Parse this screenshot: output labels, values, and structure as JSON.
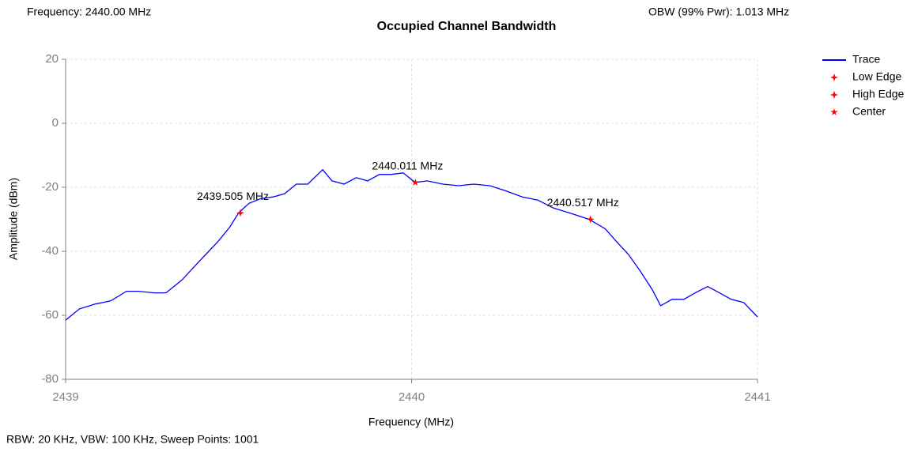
{
  "chart_data": {
    "type": "line",
    "title": "Occupied Channel Bandwidth",
    "header_left": "Frequency: 2440.00 MHz",
    "header_right": "OBW (99% Pwr): 1.013 MHz",
    "footer": "RBW: 20 KHz,  VBW: 100 KHz,  Sweep Points: 1001",
    "xlabel": "Frequency (MHz)",
    "ylabel": "Amplitude (dBm)",
    "xlim": [
      2439,
      2441
    ],
    "xticks": [
      2439,
      2440,
      2441
    ],
    "ylim": [
      -80,
      20
    ],
    "yticks": [
      -80,
      -60,
      -40,
      -20,
      0,
      20
    ],
    "grid": true,
    "legend": "right",
    "series": [
      {
        "name": "Trace",
        "color": "#0000ff",
        "x": [
          2439.0,
          2439.04,
          2439.085,
          2439.13,
          2439.176,
          2439.21,
          2439.256,
          2439.29,
          2439.336,
          2439.37,
          2439.405,
          2439.44,
          2439.474,
          2439.5,
          2439.53,
          2439.565,
          2439.6,
          2439.633,
          2439.667,
          2439.7,
          2439.743,
          2439.77,
          2439.805,
          2439.84,
          2439.873,
          2439.907,
          2439.94,
          2439.976,
          2440.01,
          2440.045,
          2440.09,
          2440.136,
          2440.18,
          2440.226,
          2440.27,
          2440.32,
          2440.365,
          2440.41,
          2440.456,
          2440.513,
          2440.56,
          2440.593,
          2440.627,
          2440.66,
          2440.696,
          2440.72,
          2440.753,
          2440.787,
          2440.82,
          2440.856,
          2440.89,
          2440.924,
          2440.96,
          2441.0
        ],
        "values": [
          -61.5,
          -58,
          -56.5,
          -55.5,
          -52.5,
          -52.5,
          -53,
          -53,
          -49,
          -45,
          -41,
          -37,
          -32.5,
          -28,
          -25,
          -23.5,
          -23,
          -22,
          -19,
          -19,
          -14.5,
          -18,
          -19,
          -17,
          -18,
          -16,
          -16,
          -15.5,
          -18.5,
          -18,
          -19,
          -19.5,
          -19,
          -19.5,
          -21,
          -23,
          -24,
          -26.5,
          -28,
          -30,
          -33,
          -37,
          -41,
          -46,
          -52,
          -57,
          -55,
          -55,
          -53,
          -51,
          -53,
          -55,
          -56,
          -60.5
        ]
      },
      {
        "name": "Low Edge",
        "color": "#ff0000",
        "x": [
          2439.505
        ],
        "values": [
          -28
        ],
        "labels": [
          "2439.505 MHz"
        ]
      },
      {
        "name": "High Edge",
        "color": "#ff0000",
        "x": [
          2440.517
        ],
        "values": [
          -30
        ],
        "labels": [
          "2440.517 MHz"
        ]
      },
      {
        "name": "Center",
        "color": "#ff0000",
        "x": [
          2440.011
        ],
        "values": [
          -18.5
        ],
        "labels": [
          "2440.011 MHz"
        ]
      }
    ]
  }
}
